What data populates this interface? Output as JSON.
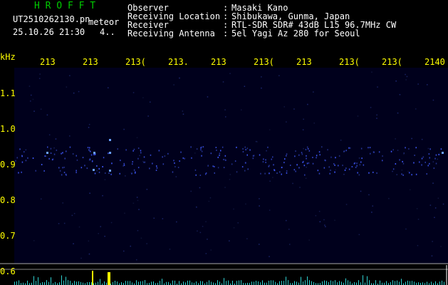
{
  "app_name": "H R O F F T",
  "file_name": "UT2510262130.pn",
  "label": "meteor",
  "datetime": "25.10.26 21:30",
  "counter": "4..",
  "separator": ":",
  "info": [
    {
      "label": "Observer",
      "value": "Masaki Kano"
    },
    {
      "label": "Receiving Location",
      "value": "Shibukawa, Gunma, Japan"
    },
    {
      "label": "Receiver",
      "value": "RTL-SDR SDR# 43dB L15 96.7MHz CW"
    },
    {
      "label": "Receiving Antenna",
      "value": "5el Yagi Az 280 for Seoul"
    }
  ],
  "time_labels": [
    "213",
    "213",
    "213(",
    "213.",
    "213",
    "213(",
    "213",
    "213(",
    "213(",
    "2140"
  ],
  "freq_unit": "kHz",
  "freq_labels": [
    "1.1",
    "1.0",
    "0.9",
    "0.8",
    "0.7",
    "0.6"
  ]
}
